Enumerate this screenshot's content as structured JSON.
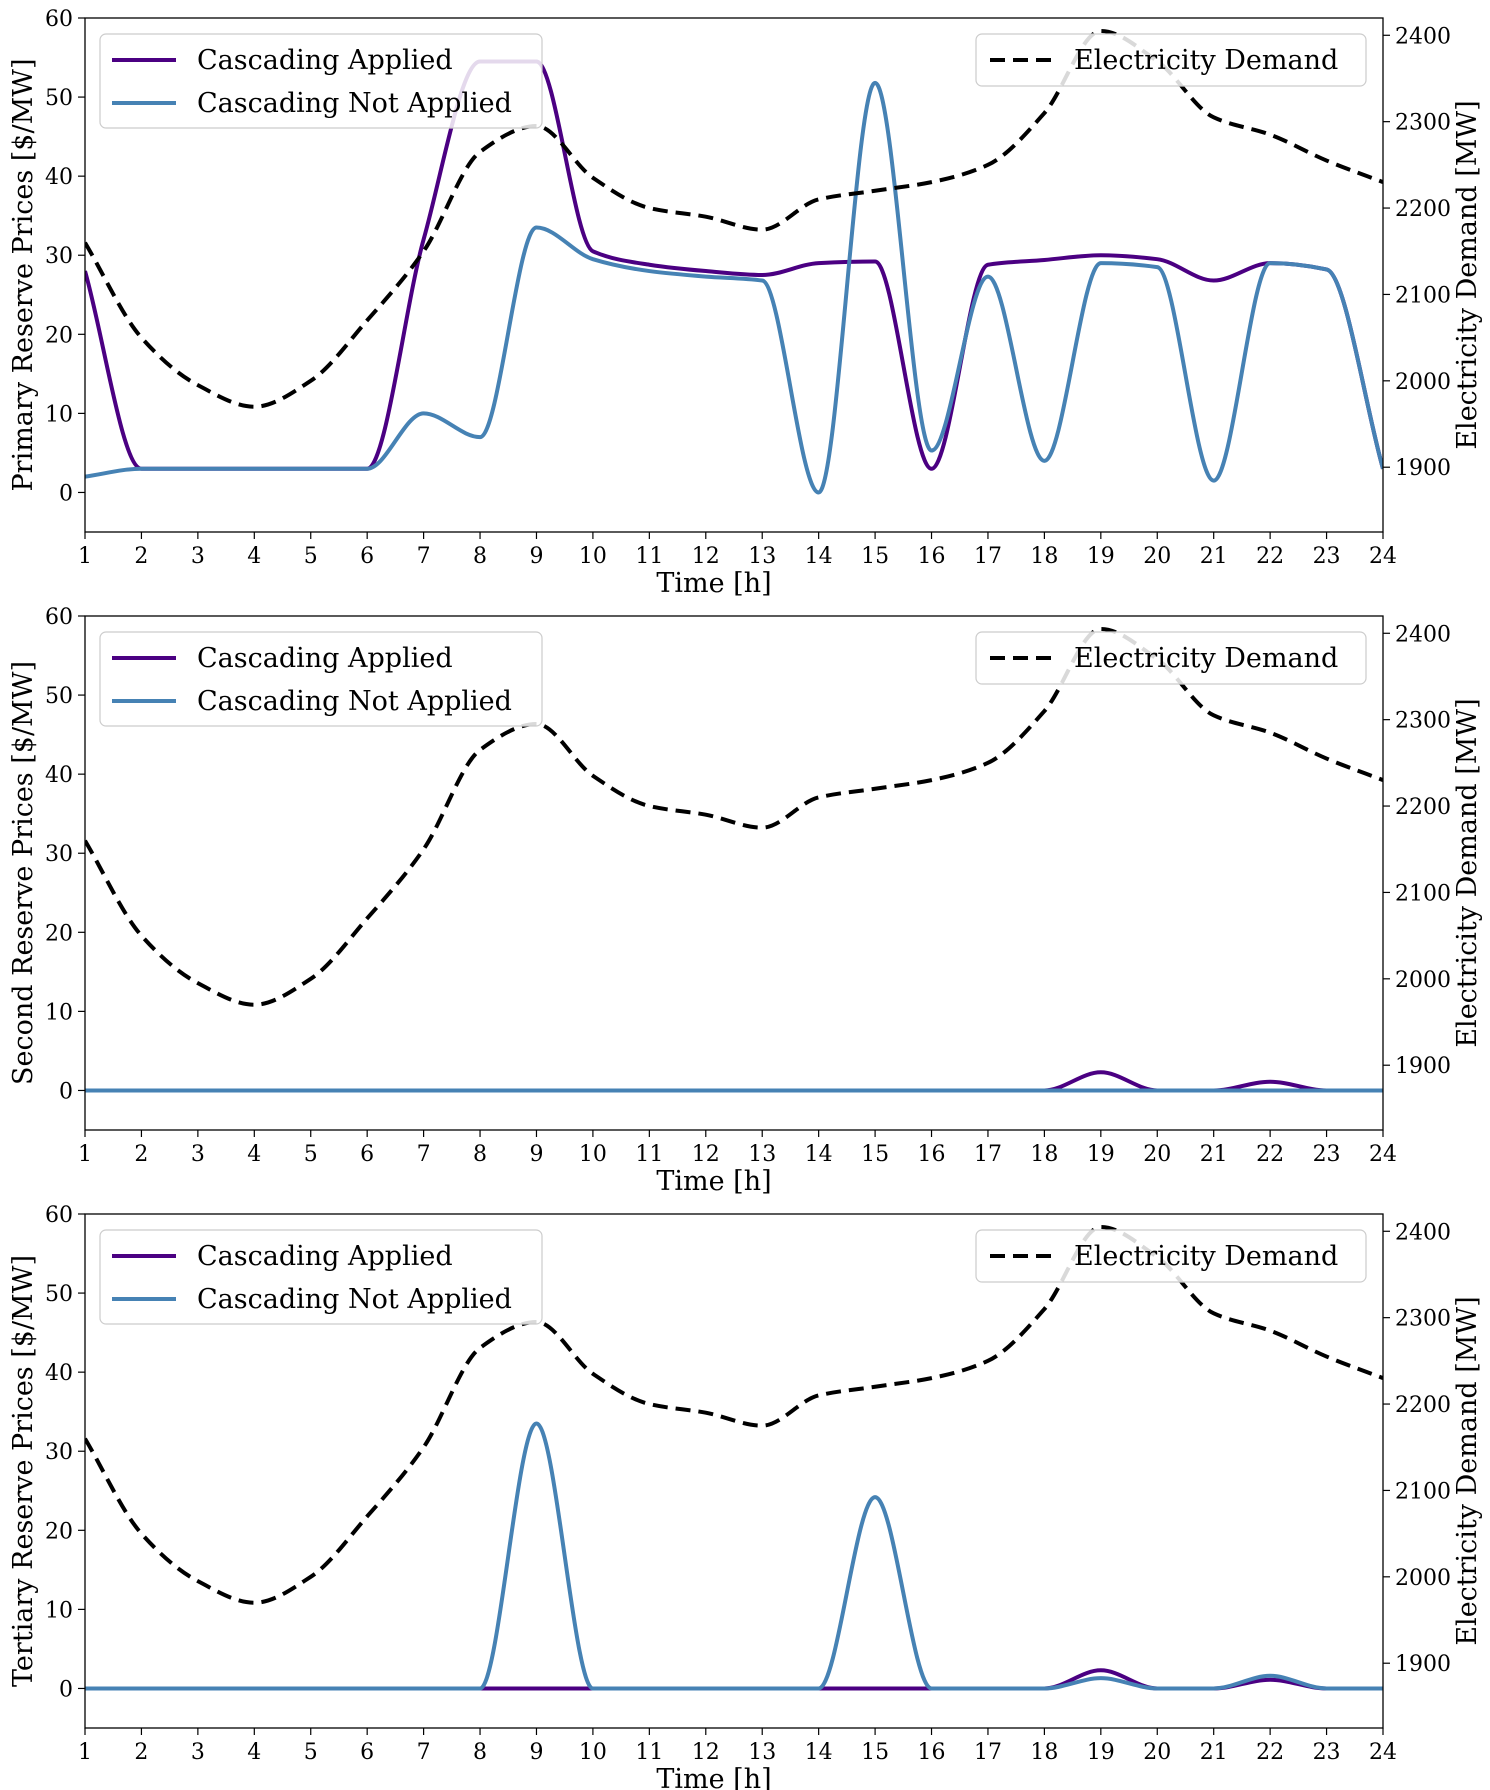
{
  "chart_data": [
    {
      "type": "line",
      "xlabel": "Time [h]",
      "ylabel": "Primary Reserve Prices [$/MW]",
      "y2label": "Electricity Demand [MW]",
      "xlim": [
        1,
        24
      ],
      "ylim": [
        -5,
        60
      ],
      "y2lim": [
        1825,
        2420
      ],
      "xticks": [
        1,
        2,
        3,
        4,
        5,
        6,
        7,
        8,
        9,
        10,
        11,
        12,
        13,
        14,
        15,
        16,
        17,
        18,
        19,
        20,
        21,
        22,
        23,
        24
      ],
      "yticks": [
        0,
        10,
        20,
        30,
        40,
        50,
        60
      ],
      "y2ticks": [
        1900,
        2000,
        2100,
        2200,
        2300,
        2400
      ],
      "grid": false,
      "legend_left_position": "top-left",
      "legend_right_position": "top-right",
      "series": [
        {
          "name": "Cascading Applied",
          "axis": "left",
          "color": "#4B0082",
          "style": "solid",
          "x": [
            1,
            2,
            3,
            4,
            5,
            6,
            7,
            8,
            8.5,
            9,
            10,
            11,
            12,
            13,
            14,
            15,
            16,
            17,
            18,
            19,
            20,
            21,
            22,
            23,
            24
          ],
          "y": [
            28,
            3,
            3,
            3,
            3,
            3,
            32,
            54.5,
            54.5,
            54.5,
            30.5,
            28.8,
            28,
            27.5,
            29,
            29.2,
            3,
            28.8,
            29.4,
            30,
            29.5,
            26.8,
            29,
            28.2,
            3
          ]
        },
        {
          "name": "Cascading Not Applied",
          "axis": "left",
          "color": "#4682B4",
          "style": "solid",
          "x": [
            1,
            2,
            3,
            4,
            5,
            6,
            7,
            8,
            9,
            10,
            11,
            12,
            13,
            14,
            15,
            16,
            17,
            18,
            19,
            20,
            21,
            22,
            23,
            24
          ],
          "y": [
            2,
            3,
            3,
            3,
            3,
            3,
            10,
            7,
            33.5,
            29.5,
            28,
            27.3,
            26.8,
            0,
            51.8,
            5.3,
            27.3,
            4,
            29,
            28.5,
            1.5,
            29,
            28.2,
            3
          ]
        },
        {
          "name": "Electricity Demand",
          "axis": "right",
          "color": "#000000",
          "style": "dashed",
          "x": [
            1,
            2,
            3,
            4,
            5,
            6,
            7,
            8,
            9,
            10,
            11,
            12,
            13,
            14,
            15,
            16,
            17,
            18,
            19,
            20,
            21,
            22,
            23,
            24
          ],
          "y": [
            2160,
            2050,
            1995,
            1970,
            2000,
            2070,
            2150,
            2265,
            2295,
            2235,
            2200,
            2190,
            2175,
            2210,
            2220,
            2230,
            2250,
            2310,
            2405,
            2370,
            2305,
            2285,
            2255,
            2230
          ]
        }
      ]
    },
    {
      "type": "line",
      "xlabel": "Time [h]",
      "ylabel": "Second Reserve Prices [$/MW]",
      "y2label": "Electricity Demand [MW]",
      "xlim": [
        1,
        24
      ],
      "ylim": [
        -5,
        60
      ],
      "y2lim": [
        1825,
        2420
      ],
      "xticks": [
        1,
        2,
        3,
        4,
        5,
        6,
        7,
        8,
        9,
        10,
        11,
        12,
        13,
        14,
        15,
        16,
        17,
        18,
        19,
        20,
        21,
        22,
        23,
        24
      ],
      "yticks": [
        0,
        10,
        20,
        30,
        40,
        50,
        60
      ],
      "y2ticks": [
        1900,
        2000,
        2100,
        2200,
        2300,
        2400
      ],
      "grid": false,
      "legend_left_position": "top-left",
      "legend_right_position": "top-right",
      "series": [
        {
          "name": "Cascading Applied",
          "axis": "left",
          "color": "#4B0082",
          "style": "solid",
          "x": [
            1,
            2,
            3,
            4,
            5,
            6,
            7,
            8,
            9,
            10,
            11,
            12,
            13,
            14,
            15,
            16,
            17,
            18,
            19,
            20,
            21,
            22,
            23,
            24
          ],
          "y": [
            0,
            0,
            0,
            0,
            0,
            0,
            0,
            0,
            0,
            0,
            0,
            0,
            0,
            0,
            0,
            0,
            0,
            0,
            2.3,
            0,
            0,
            1.1,
            0,
            0
          ]
        },
        {
          "name": "Cascading Not Applied",
          "axis": "left",
          "color": "#4682B4",
          "style": "solid",
          "x": [
            1,
            2,
            3,
            4,
            5,
            6,
            7,
            8,
            9,
            10,
            11,
            12,
            13,
            14,
            15,
            16,
            17,
            18,
            19,
            20,
            21,
            22,
            23,
            24
          ],
          "y": [
            0,
            0,
            0,
            0,
            0,
            0,
            0,
            0,
            0,
            0,
            0,
            0,
            0,
            0,
            0,
            0,
            0,
            0,
            0,
            0,
            0,
            0,
            0,
            0
          ]
        },
        {
          "name": "Electricity Demand",
          "axis": "right",
          "color": "#000000",
          "style": "dashed",
          "x": [
            1,
            2,
            3,
            4,
            5,
            6,
            7,
            8,
            9,
            10,
            11,
            12,
            13,
            14,
            15,
            16,
            17,
            18,
            19,
            20,
            21,
            22,
            23,
            24
          ],
          "y": [
            2160,
            2050,
            1995,
            1970,
            2000,
            2070,
            2150,
            2265,
            2295,
            2235,
            2200,
            2190,
            2175,
            2210,
            2220,
            2230,
            2250,
            2310,
            2405,
            2370,
            2305,
            2285,
            2255,
            2230
          ]
        }
      ]
    },
    {
      "type": "line",
      "xlabel": "Time [h]",
      "ylabel": "Tertiary Reserve Prices [$/MW]",
      "y2label": "Electricity Demand [MW]",
      "xlim": [
        1,
        24
      ],
      "ylim": [
        -5,
        60
      ],
      "y2lim": [
        1825,
        2420
      ],
      "xticks": [
        1,
        2,
        3,
        4,
        5,
        6,
        7,
        8,
        9,
        10,
        11,
        12,
        13,
        14,
        15,
        16,
        17,
        18,
        19,
        20,
        21,
        22,
        23,
        24
      ],
      "yticks": [
        0,
        10,
        20,
        30,
        40,
        50,
        60
      ],
      "y2ticks": [
        1900,
        2000,
        2100,
        2200,
        2300,
        2400
      ],
      "grid": false,
      "legend_left_position": "top-left",
      "legend_right_position": "top-right",
      "series": [
        {
          "name": "Cascading Applied",
          "axis": "left",
          "color": "#4B0082",
          "style": "solid",
          "x": [
            1,
            2,
            3,
            4,
            5,
            6,
            7,
            8,
            9,
            10,
            11,
            12,
            13,
            14,
            15,
            16,
            17,
            18,
            19,
            20,
            21,
            22,
            23,
            24
          ],
          "y": [
            0,
            0,
            0,
            0,
            0,
            0,
            0,
            0,
            0,
            0,
            0,
            0,
            0,
            0,
            0,
            0,
            0,
            0,
            2.3,
            0,
            0,
            1.1,
            0,
            0
          ]
        },
        {
          "name": "Cascading Not Applied",
          "axis": "left",
          "color": "#4682B4",
          "style": "solid",
          "x": [
            1,
            2,
            3,
            4,
            5,
            6,
            7,
            8,
            9,
            10,
            11,
            12,
            13,
            14,
            15,
            16,
            17,
            18,
            19,
            20,
            21,
            22,
            23,
            24
          ],
          "y": [
            0,
            0,
            0,
            0,
            0,
            0,
            0,
            0,
            33.5,
            0,
            0,
            0,
            0,
            0,
            24.2,
            0,
            0,
            0,
            1.3,
            0,
            0,
            1.6,
            0,
            0
          ]
        },
        {
          "name": "Electricity Demand",
          "axis": "right",
          "color": "#000000",
          "style": "dashed",
          "x": [
            1,
            2,
            3,
            4,
            5,
            6,
            7,
            8,
            9,
            10,
            11,
            12,
            13,
            14,
            15,
            16,
            17,
            18,
            19,
            20,
            21,
            22,
            23,
            24
          ],
          "y": [
            2160,
            2050,
            1995,
            1970,
            2000,
            2070,
            2150,
            2265,
            2295,
            2235,
            2200,
            2190,
            2175,
            2210,
            2220,
            2230,
            2250,
            2310,
            2405,
            2370,
            2305,
            2285,
            2255,
            2230
          ]
        }
      ]
    }
  ]
}
